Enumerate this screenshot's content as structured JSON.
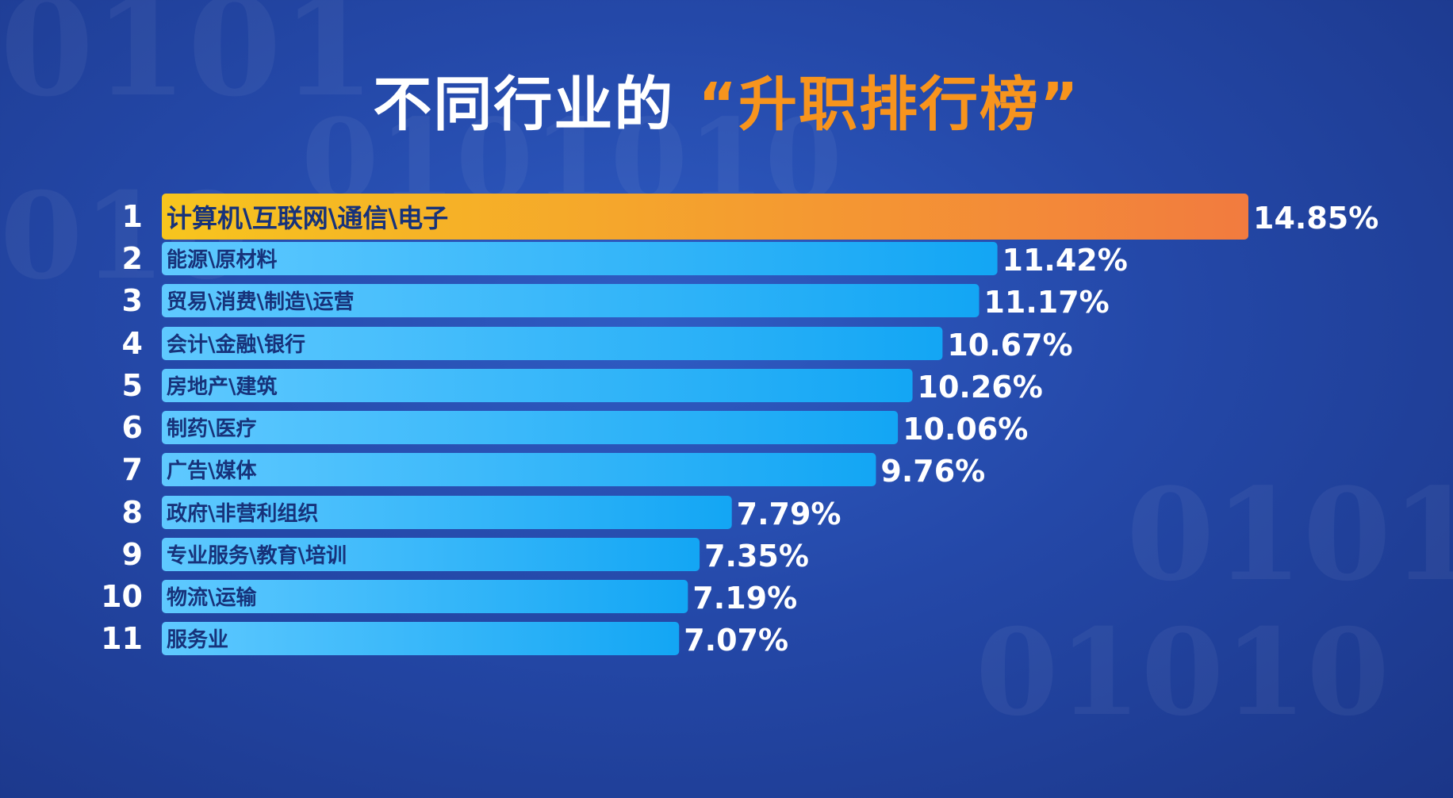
{
  "title": {
    "main": "不同行业的",
    "highlight": "“升职排行榜”"
  },
  "colors": {
    "top_bar_start": "#f7c51e",
    "top_bar_end": "#f27b3f",
    "bar_start": "#5fc9ff",
    "bar_end": "#13a6f4",
    "text": "#ffffff",
    "bar_label": "#17327a",
    "title_accent": "#f7941d"
  },
  "chart_data": {
    "type": "bar",
    "orientation": "horizontal",
    "ranks": [
      "1",
      "2",
      "3",
      "4",
      "5",
      "6",
      "7",
      "8",
      "9",
      "10",
      "11"
    ],
    "categories": [
      "计算机\\互联网\\通信\\电子",
      "能源\\原材料",
      "贸易\\消费\\制造\\运营",
      "会计\\金融\\银行",
      "房地产\\建筑",
      "制药\\医疗",
      "广告\\媒体",
      "政府\\非营利组织",
      "专业服务\\教育\\培训",
      "物流\\运输",
      "服务业"
    ],
    "values": [
      14.85,
      11.42,
      11.17,
      10.67,
      10.26,
      10.06,
      9.76,
      7.79,
      7.35,
      7.19,
      7.07
    ],
    "value_labels": [
      "14.85%",
      "11.42%",
      "11.17%",
      "10.67%",
      "10.26%",
      "10.06%",
      "9.76%",
      "7.79%",
      "7.35%",
      "7.19%",
      "7.07%"
    ],
    "unit": "%",
    "highlight_index": 0
  }
}
